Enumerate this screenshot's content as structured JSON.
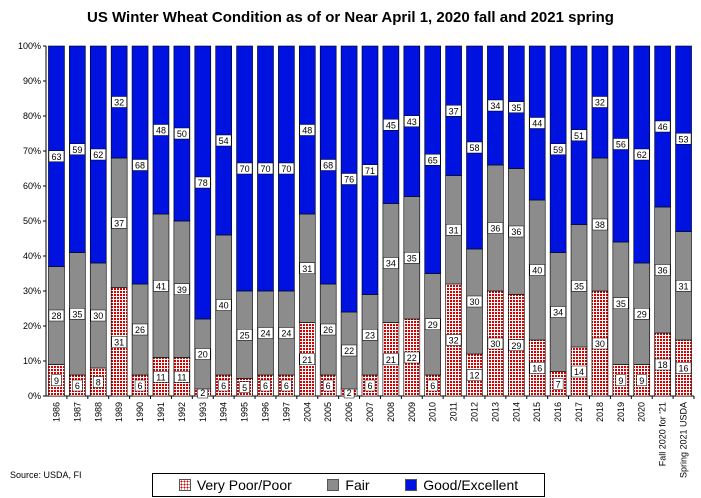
{
  "chart_data": {
    "type": "bar",
    "stacked": true,
    "title": "US Winter Wheat Condition as of or Near April 1, 2020 fall and 2021 spring",
    "source": "Source: USDA, FI",
    "xlabel": "",
    "ylabel": "",
    "ylim": [
      0,
      100
    ],
    "y_ticks": [
      "0%",
      "10%",
      "20%",
      "30%",
      "40%",
      "50%",
      "60%",
      "70%",
      "80%",
      "90%",
      "100%"
    ],
    "grid": false,
    "legend_position": "bottom",
    "categories": [
      "1986",
      "1987",
      "1988",
      "1989",
      "1990",
      "1991",
      "1992",
      "1993",
      "1994",
      "1995",
      "1996",
      "1997",
      "2004",
      "2005",
      "2006",
      "2007",
      "2008",
      "2009",
      "2010",
      "2011",
      "2012",
      "2013",
      "2014",
      "2015",
      "2016",
      "2017",
      "2018",
      "2019",
      "2020",
      "Fall 2020 for '21",
      "Spring 2021 USDA"
    ],
    "series": [
      {
        "name": "Very Poor/Poor",
        "color": "#d40000",
        "pattern": "dots",
        "values": [
          9,
          6,
          8,
          31,
          6,
          11,
          11,
          2,
          6,
          5,
          6,
          6,
          21,
          6,
          2,
          6,
          21,
          22,
          6,
          32,
          12,
          30,
          29,
          16,
          7,
          14,
          30,
          9,
          9,
          18,
          16
        ]
      },
      {
        "name": "Fair",
        "color": "#8c8c8c",
        "values": [
          28,
          35,
          30,
          37,
          26,
          41,
          39,
          20,
          40,
          25,
          24,
          24,
          31,
          26,
          22,
          23,
          34,
          35,
          29,
          31,
          30,
          36,
          36,
          40,
          34,
          35,
          38,
          35,
          29,
          36,
          31
        ]
      },
      {
        "name": "Good/Excellent",
        "color": "#0012e0",
        "values": [
          63,
          59,
          62,
          32,
          68,
          48,
          50,
          78,
          54,
          70,
          70,
          70,
          48,
          68,
          76,
          71,
          45,
          43,
          65,
          37,
          58,
          34,
          35,
          44,
          59,
          51,
          32,
          56,
          62,
          46,
          53
        ]
      }
    ]
  },
  "colors": {
    "poor_dot": "#d40000",
    "poor_bg": "#ffffff",
    "fair": "#8c8c8c",
    "good": "#0012e0",
    "label_box": "#ffffff"
  }
}
